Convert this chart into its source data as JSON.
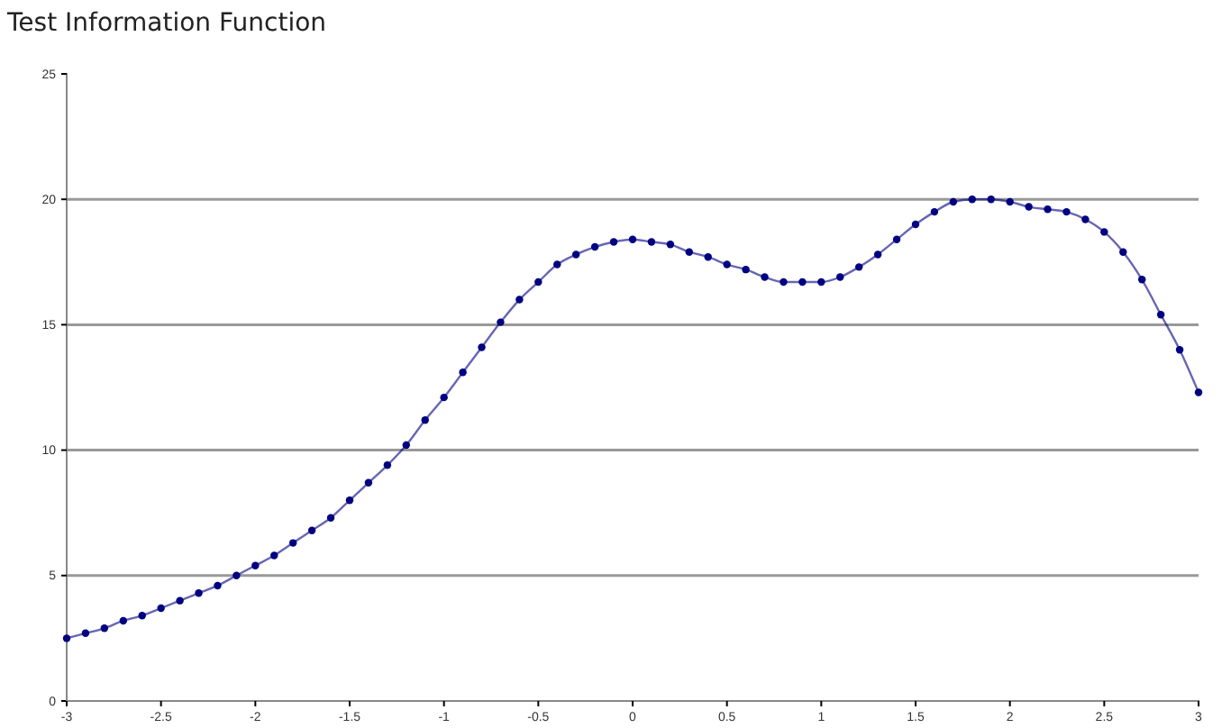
{
  "chart_data": {
    "type": "line",
    "title": "Test Information Function",
    "x": [
      -3,
      -2.9,
      -2.8,
      -2.7,
      -2.6,
      -2.5,
      -2.4,
      -2.3,
      -2.2,
      -2.1,
      -2,
      -1.9,
      -1.8,
      -1.7,
      -1.6,
      -1.5,
      -1.4,
      -1.3,
      -1.2,
      -1.1,
      -1,
      -0.9,
      -0.8,
      -0.7,
      -0.6,
      -0.5,
      -0.4,
      -0.3,
      -0.2,
      -0.1,
      0,
      0.1,
      0.2,
      0.3,
      0.4,
      0.5,
      0.6,
      0.7,
      0.8,
      0.9,
      1,
      1.1,
      1.2,
      1.3,
      1.4,
      1.5,
      1.6,
      1.7,
      1.8,
      1.9,
      2,
      2.1,
      2.2,
      2.3,
      2.4,
      2.5,
      2.6,
      2.7,
      2.8,
      2.9,
      3
    ],
    "series": [
      {
        "color": "#000080",
        "values": [
          2.5,
          2.7,
          2.9,
          3.2,
          3.4,
          3.7,
          4.0,
          4.3,
          4.6,
          5.0,
          5.4,
          5.8,
          6.3,
          6.8,
          7.3,
          8.0,
          8.7,
          9.4,
          10.2,
          11.2,
          12.1,
          13.1,
          14.1,
          15.1,
          16.0,
          16.7,
          17.4,
          17.8,
          18.1,
          18.3,
          18.4,
          18.3,
          18.2,
          17.9,
          17.7,
          17.4,
          17.2,
          16.9,
          16.7,
          16.7,
          16.7,
          16.9,
          17.3,
          17.8,
          18.4,
          19.0,
          19.5,
          19.9,
          20.0,
          20.0,
          19.9,
          19.7,
          19.6,
          19.5,
          19.2,
          18.7,
          17.9,
          16.8,
          15.4,
          14.0,
          12.3
        ]
      }
    ],
    "xlim": [
      -3,
      3
    ],
    "xticks": [
      -3,
      -2.5,
      -2,
      -1.5,
      -1,
      -0.5,
      0,
      0.5,
      1,
      1.5,
      2,
      2.5,
      3
    ],
    "ylim": [
      0,
      25
    ],
    "yticks": [
      0,
      5,
      10,
      15,
      20,
      25
    ],
    "grid": "y",
    "marker": "circle",
    "line_style": "solid"
  }
}
